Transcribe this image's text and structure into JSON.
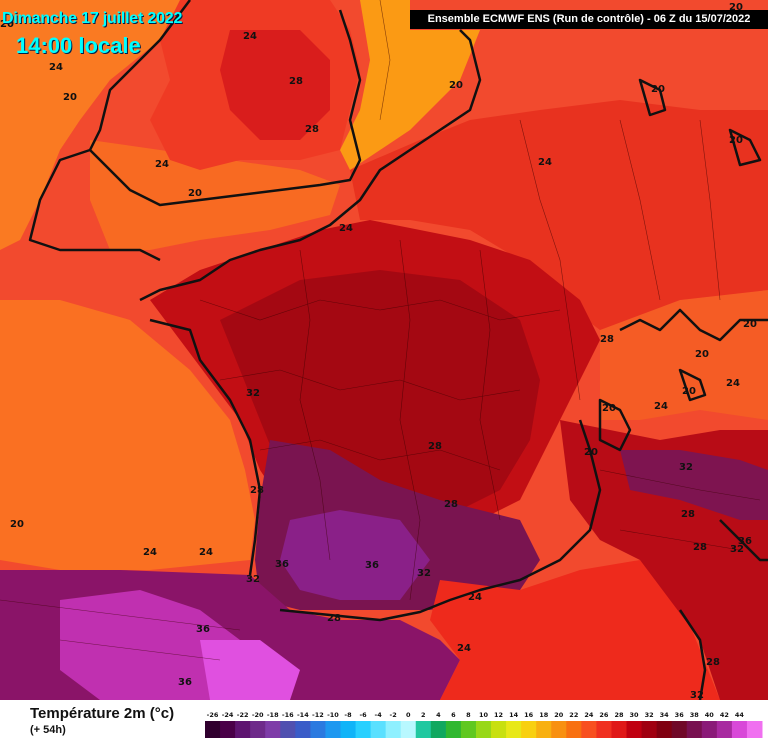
{
  "header": {
    "date_label": "Dimanche 17 juillet 2022",
    "time_label": "14:00 locale",
    "model_label": "Ensemble ECMWF ENS  (Run de contrôle)  -  06 Z du 15/07/2022"
  },
  "legend": {
    "title": "Température 2m (°c)",
    "subtitle": "(+ 54h)",
    "ticks": [
      -26,
      -24,
      -22,
      -20,
      -18,
      -16,
      -14,
      -12,
      -10,
      -8,
      -6,
      -4,
      -2,
      0,
      2,
      4,
      6,
      8,
      10,
      12,
      14,
      16,
      18,
      20,
      22,
      24,
      26,
      28,
      30,
      32,
      34,
      36,
      38,
      40,
      42,
      44
    ],
    "colors": [
      "#30002e",
      "#4a0048",
      "#5e1470",
      "#6e2a8a",
      "#7e3ca8",
      "#5050b0",
      "#3a5cc8",
      "#2b7ae0",
      "#1e98f0",
      "#10b4f8",
      "#28d0ff",
      "#5ae0ff",
      "#8ef0ff",
      "#b8f8ff",
      "#20c8a0",
      "#10a860",
      "#30b830",
      "#60c820",
      "#98d818",
      "#c8e010",
      "#e8e818",
      "#f8d010",
      "#f8b010",
      "#f89010",
      "#f87010",
      "#f85020",
      "#f03020",
      "#e01818",
      "#c00010",
      "#a00010",
      "#800010",
      "#700828",
      "#781050",
      "#8a1a78",
      "#a82aa0",
      "#d848d8",
      "#f070f0"
    ]
  },
  "map": {
    "labels": [
      {
        "text": "20"
      },
      {
        "text": "24"
      },
      {
        "text": "24"
      },
      {
        "text": "20"
      },
      {
        "text": "28"
      },
      {
        "text": "28"
      },
      {
        "text": "24"
      },
      {
        "text": "20"
      },
      {
        "text": "20"
      },
      {
        "text": "20"
      },
      {
        "text": "20"
      },
      {
        "text": "24"
      },
      {
        "text": "24"
      },
      {
        "text": "28"
      },
      {
        "text": "20"
      },
      {
        "text": "20"
      },
      {
        "text": "20"
      },
      {
        "text": "24"
      },
      {
        "text": "20"
      },
      {
        "text": "24"
      },
      {
        "text": "32"
      },
      {
        "text": "20"
      },
      {
        "text": "32"
      },
      {
        "text": "28"
      },
      {
        "text": "28"
      },
      {
        "text": "28"
      },
      {
        "text": "28"
      },
      {
        "text": "28"
      },
      {
        "text": "36"
      },
      {
        "text": "32"
      },
      {
        "text": "20"
      },
      {
        "text": "24"
      },
      {
        "text": "24"
      },
      {
        "text": "36"
      },
      {
        "text": "36"
      },
      {
        "text": "32"
      },
      {
        "text": "32"
      },
      {
        "text": "24"
      },
      {
        "text": "28"
      },
      {
        "text": "36"
      },
      {
        "text": "24"
      },
      {
        "text": "36"
      },
      {
        "text": "28"
      },
      {
        "text": "32"
      },
      {
        "text": "20"
      }
    ]
  }
}
